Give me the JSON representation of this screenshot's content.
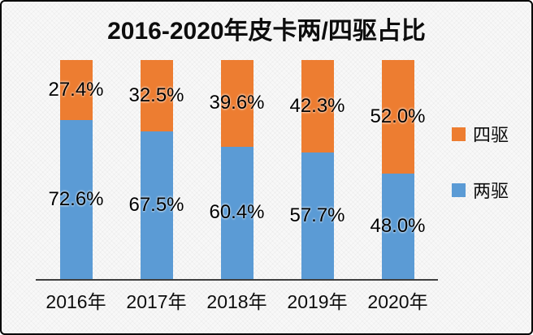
{
  "title": "2016-2020年皮卡两/四驱占比",
  "colors": {
    "four_wheel": "#ED7D31",
    "two_wheel": "#5B9BD5",
    "axis": "#3f3f3f",
    "text": "#0d0d0d",
    "border": "#000000",
    "background": "#f8f8f8"
  },
  "chart_data": {
    "type": "bar",
    "stacked": true,
    "title": "2016-2020年皮卡两/四驱占比",
    "categories": [
      "2016年",
      "2017年",
      "2018年",
      "2019年",
      "2020年"
    ],
    "series": [
      {
        "name": "两驱",
        "color_key": "two_wheel",
        "values": [
          72.6,
          67.5,
          60.4,
          57.7,
          48.0
        ],
        "labels": [
          "72.6%",
          "67.5%",
          "60.4%",
          "57.7%",
          "48.0%"
        ]
      },
      {
        "name": "四驱",
        "color_key": "four_wheel",
        "values": [
          27.4,
          32.5,
          39.6,
          42.3,
          52.0
        ],
        "labels": [
          "27.4%",
          "32.5%",
          "39.6%",
          "42.3%",
          "52.0%"
        ]
      }
    ],
    "legend": [
      {
        "label": "四驱",
        "color_key": "four_wheel"
      },
      {
        "label": "两驱",
        "color_key": "two_wheel"
      }
    ],
    "legend_position": "right",
    "xlabel": "",
    "ylabel": "",
    "ylim": [
      0,
      100
    ],
    "grid": false,
    "data_label_position": "center-of-segment"
  }
}
